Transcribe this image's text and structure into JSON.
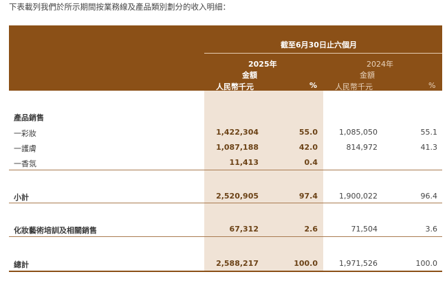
{
  "intro": "下表載列我們於所示期間按業務線及產品類別劃分的收入明細：",
  "header": {
    "period": "截至6月30日止六個月",
    "year_2025": "2025年",
    "year_2024": "2024年",
    "amount_2025": "金額",
    "amount_2024": "金額",
    "unit_2025": "人民幣千元",
    "pct_2025": "%",
    "unit_2024": "人民幣千元",
    "pct_2024": "%"
  },
  "colors": {
    "header_bg": "#8B5017",
    "highlight_col": "#F0E3D6"
  },
  "section": "產品銷售",
  "rows": [
    {
      "label": "一彩妝",
      "amt_2025": "1,422,304",
      "pct_2025": "55.0",
      "amt_2024": "1,085,050",
      "pct_2024": "55.1"
    },
    {
      "label": "一護膚",
      "amt_2025": "1,087,188",
      "pct_2025": "42.0",
      "amt_2024": "814,972",
      "pct_2024": "41.3"
    },
    {
      "label": "一香氛",
      "amt_2025": "11,413",
      "pct_2025": "0.4",
      "amt_2024": "",
      "pct_2024": ""
    },
    {
      "label": "小計",
      "amt_2025": "2,520,905",
      "pct_2025": "97.4",
      "amt_2024": "1,900,022",
      "pct_2024": "96.4"
    },
    {
      "label": "化妝藝術培訓及相關銷售",
      "amt_2025": "67,312",
      "pct_2025": "2.6",
      "amt_2024": "71,504",
      "pct_2024": "3.6"
    },
    {
      "label": "總計",
      "amt_2025": "2,588,217",
      "pct_2025": "100.0",
      "amt_2024": "1,971,526",
      "pct_2024": "100.0"
    }
  ]
}
